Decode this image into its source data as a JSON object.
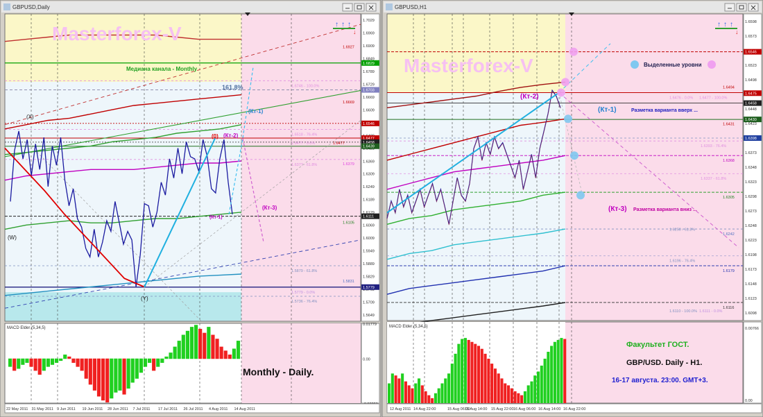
{
  "windows": [
    {
      "title": "GBPUSD,Daily",
      "watermark": "Masterforex-V",
      "annotations": {
        "median_label": "Медиана канала - Monthly",
        "fib_161": "161.8%",
        "kt1": "(Кт-1)",
        "kt2": "(Кт-2)",
        "kt3": "(Кт-3)",
        "kt1_low": "(Кт-1)",
        "zero": "(0)",
        "x": "(X)",
        "w": "(W)",
        "y": "(Y)",
        "big_caption": "Monthly -  Daily."
      },
      "level_labels": [
        "1.6927",
        "1.6669",
        "1.6477",
        "1.6379",
        "1.6105",
        "1.5831",
        "1.5879 - 61.8%",
        "1.5779 - 0.0%",
        "1.5736 - 76.4%",
        "1.6477 - 0.0%",
        "1.6518 - 76.4%",
        "1.6377 - 61.8%",
        "1.6746 - 100.0%"
      ],
      "price_scale": [
        "1.7029",
        "1.6969",
        "1.6909",
        "1.6849",
        "1.6789",
        "1.6729",
        "1.6669",
        "1.6609",
        "1.6549",
        "1.6489",
        "1.6429",
        "1.6369",
        "1.6309",
        "1.6249",
        "1.6189",
        "1.6129",
        "1.6069",
        "1.6009",
        "1.5949",
        "1.5889",
        "1.5829",
        "1.5769",
        "1.5709",
        "1.5649"
      ],
      "price_tags": [
        {
          "text": "1.6829",
          "color": "#00a000"
        },
        {
          "text": "1.6703",
          "color": "#8080c0"
        },
        {
          "text": "1.6546",
          "color": "#c00000"
        },
        {
          "text": "1.6477",
          "color": "#c00000"
        },
        {
          "text": "1.6458",
          "color": "#202020"
        },
        {
          "text": "1.6439",
          "color": "#206020"
        },
        {
          "text": "1.6111",
          "color": "#202020"
        },
        {
          "text": "1.5779",
          "color": "#202080"
        }
      ],
      "macd_label": "MACD Elder (5,34,5)",
      "macd_scale": [
        "0.01779",
        "0.00",
        "-0.02253"
      ],
      "date_axis": [
        "22 May 2011",
        "31 May 2011",
        "9 Jun 2011",
        "19 Jun 2011",
        "28 Jun 2011",
        "7 Jul 2011",
        "17 Jul 2011",
        "26 Jul 2011",
        "4 Aug 2011",
        "14 Aug 2011"
      ]
    },
    {
      "title": "GBPUSD,H1",
      "watermark": "Masterforex-V",
      "annotations": {
        "legend_text": "Выделенные уровни",
        "kt1": "(Кт-1)",
        "kt1_text": "Разметка варианта вверх ...",
        "kt2": "(Кт-2)",
        "kt3": "(Кт-3)",
        "kt3_text": "Разметка варианта вниз ...",
        "faculty": "Факультет ГОСТ.",
        "pair": "GBP/USD. Daily - H1.",
        "date": "16-17  августа. 23:00. GMT+3."
      },
      "level_labels": [
        "1.6494",
        "1.6431",
        "1.6368",
        "1.6305",
        "1.6242",
        "1.6179",
        "1.6116",
        "1.6476 - 0.0%",
        "1.6477 - 100.0%",
        "1.6393 - 76.4%",
        "1.6337 - 61.8%",
        "1.6250 - 61.8%",
        "1.6196 - 76.4%",
        "1.6110 - 100.0%",
        "1.6111 - 0.0%"
      ],
      "price_scale": [
        "1.6598",
        "1.6573",
        "1.6548",
        "1.6523",
        "1.6498",
        "1.6473",
        "1.6448",
        "1.6423",
        "1.6398",
        "1.6373",
        "1.6348",
        "1.6323",
        "1.6298",
        "1.6273",
        "1.6248",
        "1.6223",
        "1.6198",
        "1.6173",
        "1.6148",
        "1.6123",
        "1.6098"
      ],
      "price_tags": [
        {
          "text": "1.6546",
          "color": "#c00000"
        },
        {
          "text": "1.6475",
          "color": "#c00000"
        },
        {
          "text": "1.6458",
          "color": "#202020"
        },
        {
          "text": "1.6430",
          "color": "#206020"
        },
        {
          "text": "1.6398",
          "color": "#2040a0"
        }
      ],
      "macd_label": "MACD Elder (5,34,5)",
      "macd_scale": [
        "0.00766",
        "0.00"
      ],
      "date_axis": [
        "12 Aug 2011",
        "14 Aug 22:00",
        "15 Aug 06:00",
        "15 Aug 14:00",
        "15 Aug 22:00",
        "16 Aug 06:00",
        "16 Aug 14:00",
        "16 Aug 22:00"
      ]
    }
  ],
  "chart_data": [
    {
      "type": "line",
      "title": "GBPUSD,Daily",
      "ylim": [
        1.5619,
        1.7059
      ],
      "series": [
        {
          "values": [
            1.618,
            1.642,
            1.651,
            1.638,
            1.647,
            1.63,
            1.645,
            1.633,
            1.648,
            1.625,
            1.644,
            1.635,
            1.648,
            1.628,
            1.616,
            1.624,
            1.61,
            1.606,
            1.596,
            1.592,
            1.605,
            1.592,
            1.599,
            1.609,
            1.604,
            1.618,
            1.608,
            1.598,
            1.604,
            1.6,
            1.578,
            1.593,
            1.617,
            1.616,
            1.606,
            1.613,
            1.627,
            1.621,
            1.638,
            1.629,
            1.643,
            1.631,
            1.646,
            1.639,
            1.638,
            1.632,
            1.647,
            1.639,
            1.624,
            1.622,
            1.638,
            1.647,
            1.627,
            1.612
          ]
        },
        {
          "values": [
            1.643,
            1.633,
            1.623,
            1.612,
            1.602,
            1.592,
            1.582,
            1.578,
            1.586,
            1.596,
            1.606,
            1.616,
            1.626,
            1.636,
            1.6476
          ]
        },
        {
          "values": [
            1.652,
            1.654,
            1.656,
            1.657,
            1.659,
            1.661,
            1.663,
            1.664,
            1.665,
            1.666,
            1.667,
            1.668
          ]
        },
        {
          "values": [
            1.64,
            1.641,
            1.642,
            1.643,
            1.644,
            1.646,
            1.647,
            1.648,
            1.65,
            1.651,
            1.652,
            1.654
          ]
        },
        {
          "values": [
            1.628,
            1.63,
            1.631,
            1.632,
            1.633,
            1.633,
            1.633,
            1.634,
            1.635,
            1.636,
            1.636,
            1.637
          ]
        },
        {
          "values": [
            1.605,
            1.607,
            1.608,
            1.609,
            1.608,
            1.608,
            1.609,
            1.61,
            1.61,
            1.611,
            1.612,
            1.613
          ]
        },
        {
          "values": [
            1.574,
            1.575,
            1.576,
            1.577,
            1.578,
            1.579,
            1.58,
            1.581,
            1.582,
            1.583,
            1.5835,
            1.584
          ]
        },
        {
          "values": [
            1.693,
            1.694,
            1.695,
            1.696,
            1.696,
            1.696,
            1.696,
            1.696,
            1.695,
            1.694,
            1.694,
            1.694
          ]
        }
      ],
      "macd": [
        -0.004,
        -0.006,
        -0.005,
        -0.003,
        -0.002,
        -0.004,
        -0.006,
        -0.008,
        -0.006,
        -0.004,
        -0.003,
        -0.002,
        -0.001,
        0.002,
        0.001,
        -0.002,
        -0.004,
        -0.006,
        -0.01,
        -0.013,
        -0.016,
        -0.019,
        -0.021,
        -0.022,
        -0.02,
        -0.017,
        -0.016,
        -0.018,
        -0.015,
        -0.012,
        -0.01,
        -0.007,
        -0.004,
        -0.002,
        -0.006,
        -0.004,
        -0.002,
        0.001,
        0.003,
        0.006,
        0.009,
        0.012,
        0.014,
        0.016,
        0.017,
        0.015,
        0.013,
        0.016,
        0.012,
        0.01,
        0.006,
        0.004,
        0.002,
        0.005,
        0.009
      ]
    },
    {
      "type": "line",
      "title": "GBPUSD,H1",
      "ylim": [
        1.6085,
        1.6611
      ],
      "series": [
        {
          "values": [
            1.626,
            1.629,
            1.627,
            1.631,
            1.628,
            1.63,
            1.627,
            1.629,
            1.631,
            1.628,
            1.63,
            1.632,
            1.629,
            1.631,
            1.628,
            1.625,
            1.629,
            1.633,
            1.63,
            1.629,
            1.632,
            1.638,
            1.64,
            1.636,
            1.639,
            1.637,
            1.64,
            1.638,
            1.639,
            1.637,
            1.635,
            1.633,
            1.636,
            1.631,
            1.634,
            1.637,
            1.633,
            1.638,
            1.641,
            1.644,
            1.648,
            1.647,
            1.645
          ]
        },
        {
          "values": [
            1.627,
            1.63,
            1.632,
            1.635,
            1.638,
            1.641,
            1.644,
            1.647
          ]
        },
        {
          "values": [
            1.636,
            1.637,
            1.638,
            1.639,
            1.64,
            1.641,
            1.642,
            1.6425,
            1.6431
          ]
        },
        {
          "values": [
            1.645,
            1.6455,
            1.646,
            1.6465,
            1.647,
            1.6478,
            1.6485,
            1.649,
            1.6494
          ]
        },
        {
          "values": [
            1.631,
            1.632,
            1.633,
            1.634,
            1.6345,
            1.635,
            1.6355,
            1.636,
            1.6368
          ]
        },
        {
          "values": [
            1.625,
            1.626,
            1.6265,
            1.6275,
            1.628,
            1.6285,
            1.629,
            1.63,
            1.6305
          ]
        },
        {
          "values": [
            1.619,
            1.62,
            1.6205,
            1.6215,
            1.622,
            1.6225,
            1.623,
            1.6235,
            1.6242
          ]
        },
        {
          "values": [
            1.613,
            1.614,
            1.6145,
            1.615,
            1.6155,
            1.616,
            1.6165,
            1.617,
            1.6179
          ]
        },
        {
          "values": [
            1.607,
            1.608,
            1.6085,
            1.609,
            1.6095,
            1.61,
            1.6105,
            1.611,
            1.6116
          ]
        }
      ],
      "macd": [
        0.002,
        0.003,
        0.0028,
        0.0025,
        0.003,
        0.0022,
        0.0018,
        0.0015,
        0.002,
        0.0025,
        0.0018,
        0.0012,
        0.0008,
        0.0005,
        0.001,
        0.0015,
        0.002,
        0.0025,
        0.003,
        0.004,
        0.005,
        0.006,
        0.0065,
        0.0066,
        0.0064,
        0.0062,
        0.006,
        0.0058,
        0.0055,
        0.005,
        0.0045,
        0.004,
        0.0035,
        0.003,
        0.0025,
        0.002,
        0.0018,
        0.0015,
        0.0012,
        0.001,
        0.0008,
        0.0012,
        0.0018,
        0.0022,
        0.0028,
        0.0032,
        0.0038,
        0.0045,
        0.0052,
        0.0058,
        0.0062,
        0.0064,
        0.0066,
        0.0065
      ]
    }
  ]
}
